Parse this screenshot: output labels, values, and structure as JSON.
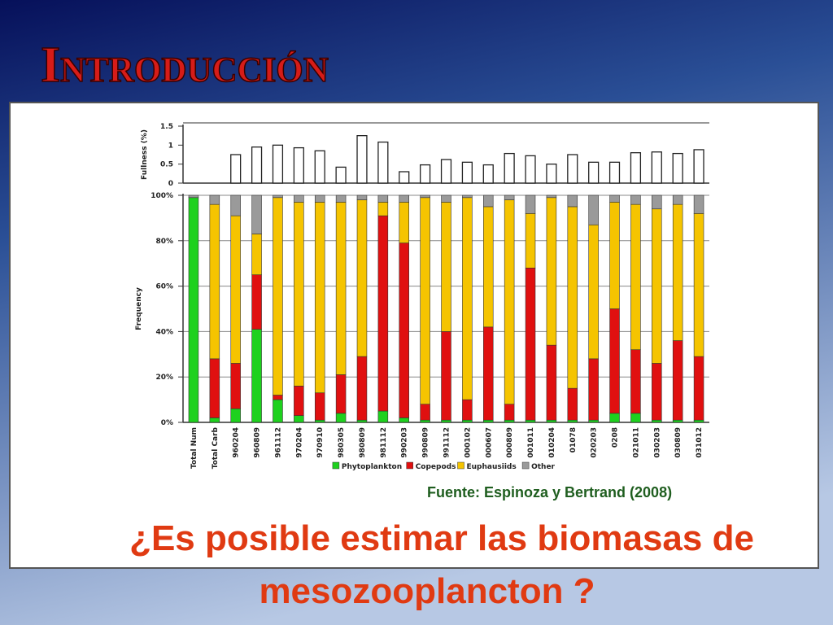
{
  "slide": {
    "title": "Introducción",
    "source": "Fuente:  Espinoza y Bertrand (2008)",
    "question": [
      "¿Es posible estimar las biomasas de",
      "mesozooplancton ?"
    ]
  },
  "chart_data": [
    {
      "type": "bar",
      "ylabel": "Fullness (%)",
      "color": "#ffffff",
      "values": [
        null,
        null,
        0.75,
        0.95,
        1.0,
        0.93,
        0.85,
        0.42,
        1.25,
        1.08,
        0.3,
        0.48,
        0.62,
        0.55,
        0.48,
        0.78,
        0.72,
        0.5,
        0.75,
        0.55,
        0.55,
        0.8,
        0.82,
        0.78,
        0.88
      ],
      "ylim": [
        0,
        1.5
      ],
      "yticks": [
        0,
        0.5,
        1,
        1.5
      ]
    },
    {
      "type": "stacked_bar",
      "ylabel": "Frequency",
      "categories": [
        "Total Num",
        "Total Carb",
        "960204",
        "960809",
        "961112",
        "970204",
        "970910",
        "980305",
        "980809",
        "981112",
        "990203",
        "990809",
        "991112",
        "000102",
        "000607",
        "000809",
        "001011",
        "010204",
        "01078",
        "020203",
        "0208",
        "021011",
        "030203",
        "030809",
        "031012"
      ],
      "series": [
        {
          "name": "Phytoplankton",
          "color": "#1ed11e",
          "values": [
            99,
            2,
            6,
            41,
            10,
            3,
            1,
            4,
            1,
            5,
            2,
            1,
            1,
            1,
            1,
            1,
            1,
            1,
            1,
            1,
            4,
            4,
            1,
            1,
            1
          ]
        },
        {
          "name": "Copepods",
          "color": "#e01010",
          "values": [
            0,
            26,
            20,
            24,
            2,
            13,
            12,
            17,
            28,
            86,
            77,
            7,
            39,
            9,
            41,
            7,
            67,
            33,
            14,
            27,
            46,
            28,
            25,
            35,
            28
          ]
        },
        {
          "name": "Euphausiids",
          "color": "#f5c400",
          "values": [
            0,
            68,
            65,
            18,
            87,
            81,
            84,
            76,
            69,
            6,
            18,
            91,
            57,
            89,
            53,
            90,
            24,
            65,
            80,
            59,
            47,
            64,
            68,
            60,
            63
          ]
        },
        {
          "name": "Other",
          "color": "#9a9a9a",
          "values": [
            1,
            4,
            9,
            17,
            1,
            3,
            3,
            3,
            2,
            3,
            3,
            1,
            3,
            1,
            5,
            2,
            8,
            1,
            5,
            13,
            3,
            4,
            6,
            4,
            8
          ]
        }
      ],
      "ylim": [
        0,
        100
      ],
      "yticks": [
        {
          "value": 0,
          "label": "0%"
        },
        {
          "value": 20,
          "label": "20%"
        },
        {
          "value": 40,
          "label": "40%"
        },
        {
          "value": 60,
          "label": "60%"
        },
        {
          "value": 80,
          "label": "80%"
        },
        {
          "value": 100,
          "label": "100%"
        }
      ],
      "grid": true,
      "legend": "bottom"
    }
  ]
}
